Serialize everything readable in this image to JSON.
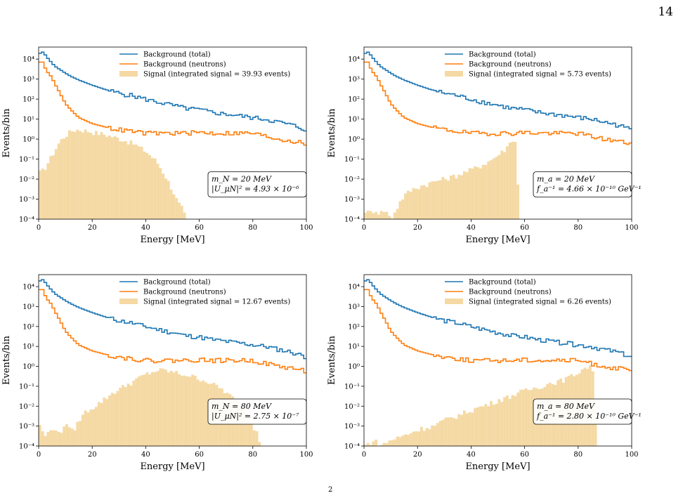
{
  "page_number": "14",
  "caption_fragment": "2",
  "colors": {
    "background_total": "#1f77b4",
    "background_neutrons": "#ff7f0e",
    "signal": "#f5d9a4"
  },
  "chart_data": [
    {
      "type": "step-histogram",
      "xlabel": "Energy [MeV]",
      "ylabel": "Events/bin",
      "xlim": [
        0,
        100
      ],
      "ylim": [
        0.0001,
        40000
      ],
      "yscale": "log",
      "x_ticks": [
        "0",
        "20",
        "40",
        "60",
        "80",
        "100"
      ],
      "y_ticks": [
        "10⁻⁴",
        "10⁻³",
        "10⁻²",
        "10⁻¹",
        "10⁰",
        "10¹",
        "10²",
        "10³",
        "10⁴"
      ],
      "legend": [
        "Background (total)",
        "Background (neutrons)",
        "Signal (integrated signal = 39.93 events)"
      ],
      "legend_position": "top-center",
      "annotation": [
        "m_N = 20 MeV",
        "|U_μN|² = 4.93 × 10⁻⁶"
      ],
      "annotation_position": "center-right",
      "series": [
        {
          "name": "Background (total)",
          "x": [
            0,
            1,
            2,
            3,
            4,
            5,
            6,
            8,
            10,
            12,
            15,
            20,
            25,
            30,
            35,
            40,
            45,
            50,
            55,
            60,
            65,
            70,
            75,
            80,
            85,
            90,
            95,
            100
          ],
          "values": [
            15000,
            25000,
            20000,
            13000,
            9000,
            6500,
            4500,
            3000,
            2000,
            1400,
            900,
            500,
            300,
            200,
            150,
            100,
            70,
            50,
            35,
            30,
            22,
            18,
            15,
            12,
            10,
            7,
            5,
            3
          ]
        },
        {
          "name": "Background (neutrons)",
          "x": [
            0,
            1,
            2,
            3,
            4,
            5,
            6,
            8,
            10,
            12,
            15,
            20,
            25,
            30,
            35,
            40,
            45,
            50,
            55,
            60,
            65,
            70,
            75,
            80,
            85,
            90,
            95,
            100
          ],
          "values": [
            5000,
            10000,
            5000,
            2500,
            1800,
            1200,
            600,
            200,
            60,
            30,
            12,
            6,
            4,
            3,
            2.5,
            2,
            2,
            2,
            2,
            2.2,
            2,
            2,
            2,
            2,
            1.4,
            1,
            0.8,
            0.6
          ]
        },
        {
          "name": "Signal",
          "x": [
            0,
            2,
            5,
            8,
            10,
            12,
            14,
            16,
            18,
            20,
            24,
            28,
            32,
            36,
            40,
            44,
            46,
            48,
            50,
            52,
            54,
            55
          ],
          "values": [
            0.02,
            0.03,
            0.15,
            0.8,
            1.5,
            2.5,
            3,
            2.9,
            2.6,
            2.3,
            1.8,
            1.3,
            0.9,
            0.55,
            0.25,
            0.08,
            0.03,
            0.01,
            0.003,
            0.0007,
            0.0003,
            0.0001
          ]
        }
      ]
    },
    {
      "type": "step-histogram",
      "xlabel": "Energy [MeV]",
      "ylabel": "Events/bin",
      "xlim": [
        0,
        100
      ],
      "ylim": [
        0.0001,
        40000
      ],
      "yscale": "log",
      "x_ticks": [
        "0",
        "20",
        "40",
        "60",
        "80",
        "100"
      ],
      "y_ticks": [
        "10⁻⁴",
        "10⁻³",
        "10⁻²",
        "10⁻¹",
        "10⁰",
        "10¹",
        "10²",
        "10³",
        "10⁴"
      ],
      "legend": [
        "Background (total)",
        "Background (neutrons)",
        "Signal (integrated signal = 5.73 events)"
      ],
      "legend_position": "top-center",
      "annotation": [
        "m_a = 20 MeV",
        "f_a⁻¹ = 4.66 × 10⁻¹⁰ GeV⁻¹"
      ],
      "annotation_position": "center-right",
      "series": [
        {
          "name": "Background (total)",
          "x": [
            0,
            1,
            2,
            3,
            4,
            5,
            6,
            8,
            10,
            12,
            15,
            20,
            25,
            30,
            35,
            40,
            45,
            50,
            55,
            60,
            65,
            70,
            75,
            80,
            85,
            90,
            95,
            100
          ],
          "values": [
            15000,
            25000,
            20000,
            13000,
            9000,
            6500,
            4500,
            3000,
            2000,
            1400,
            900,
            500,
            300,
            200,
            150,
            100,
            70,
            50,
            35,
            30,
            22,
            18,
            15,
            12,
            10,
            7,
            5,
            3
          ]
        },
        {
          "name": "Background (neutrons)",
          "x": [
            0,
            1,
            2,
            3,
            4,
            5,
            6,
            8,
            10,
            12,
            15,
            20,
            25,
            30,
            35,
            40,
            45,
            50,
            55,
            60,
            65,
            70,
            75,
            80,
            85,
            90,
            95,
            100
          ],
          "values": [
            5000,
            10000,
            5000,
            2500,
            1800,
            1200,
            600,
            200,
            60,
            30,
            12,
            6,
            4,
            3,
            2.5,
            2,
            2,
            2,
            2,
            2.2,
            2,
            2,
            2,
            2,
            1.4,
            1,
            0.8,
            0.6
          ]
        },
        {
          "name": "Signal",
          "x": [
            0,
            2,
            4,
            6,
            8,
            10,
            12,
            14,
            16,
            18,
            20,
            24,
            28,
            32,
            36,
            40,
            44,
            48,
            52,
            54,
            55,
            56,
            57,
            58
          ],
          "values": [
            0.0003,
            0.0002,
            0.0003,
            0.0002,
            0.0003,
            0.0001,
            0.0003,
            0.001,
            0.002,
            0.003,
            0.004,
            0.006,
            0.009,
            0.012,
            0.018,
            0.03,
            0.05,
            0.1,
            0.25,
            0.5,
            0.8,
            1.3,
            0.4,
            0.0001
          ]
        }
      ]
    },
    {
      "type": "step-histogram",
      "xlabel": "Energy [MeV]",
      "ylabel": "Events/bin",
      "xlim": [
        0,
        100
      ],
      "ylim": [
        0.0001,
        40000
      ],
      "yscale": "log",
      "x_ticks": [
        "0",
        "20",
        "40",
        "60",
        "80",
        "100"
      ],
      "y_ticks": [
        "10⁻⁴",
        "10⁻³",
        "10⁻²",
        "10⁻¹",
        "10⁰",
        "10¹",
        "10²",
        "10³",
        "10⁴"
      ],
      "legend": [
        "Background (total)",
        "Background (neutrons)",
        "Signal (integrated signal = 12.67 events)"
      ],
      "legend_position": "top-center",
      "annotation": [
        "m_N = 80 MeV",
        "|U_μN|² = 2.75 × 10⁻⁷"
      ],
      "annotation_position": "center-right",
      "series": [
        {
          "name": "Background (total)",
          "x": [
            0,
            1,
            2,
            3,
            4,
            5,
            6,
            8,
            10,
            12,
            15,
            20,
            25,
            30,
            35,
            40,
            45,
            50,
            55,
            60,
            65,
            70,
            75,
            80,
            85,
            90,
            95,
            100
          ],
          "values": [
            15000,
            25000,
            20000,
            13000,
            9000,
            6500,
            4500,
            3000,
            2000,
            1400,
            900,
            500,
            300,
            200,
            150,
            100,
            70,
            50,
            35,
            30,
            22,
            18,
            15,
            12,
            10,
            7,
            5,
            3
          ]
        },
        {
          "name": "Background (neutrons)",
          "x": [
            0,
            1,
            2,
            3,
            4,
            5,
            6,
            8,
            10,
            12,
            15,
            20,
            25,
            30,
            35,
            40,
            45,
            50,
            55,
            60,
            65,
            70,
            75,
            80,
            85,
            90,
            95,
            100
          ],
          "values": [
            5000,
            10000,
            5000,
            2500,
            1800,
            1200,
            600,
            200,
            60,
            30,
            12,
            6,
            4,
            3,
            2.5,
            2,
            2,
            2,
            2,
            2.2,
            2,
            2,
            2,
            2,
            1.4,
            1,
            0.8,
            0.6
          ]
        },
        {
          "name": "Signal",
          "x": [
            0,
            2,
            4,
            6,
            8,
            10,
            12,
            14,
            16,
            18,
            20,
            24,
            28,
            32,
            36,
            40,
            44,
            46,
            48,
            52,
            56,
            60,
            64,
            68,
            72,
            76,
            78,
            80,
            82,
            83
          ],
          "values": [
            0.002,
            0.0003,
            0.0005,
            0.001,
            0.0003,
            0.002,
            0.0005,
            0.001,
            0.003,
            0.006,
            0.008,
            0.02,
            0.05,
            0.1,
            0.2,
            0.4,
            0.6,
            0.65,
            0.6,
            0.45,
            0.35,
            0.25,
            0.15,
            0.08,
            0.03,
            0.01,
            0.005,
            0.001,
            0.0005,
            0.0001
          ]
        }
      ]
    },
    {
      "type": "step-histogram",
      "xlabel": "Energy [MeV]",
      "ylabel": "Events/bin",
      "xlim": [
        0,
        100
      ],
      "ylim": [
        0.0001,
        40000
      ],
      "yscale": "log",
      "x_ticks": [
        "0",
        "20",
        "40",
        "60",
        "80",
        "100"
      ],
      "y_ticks": [
        "10⁻⁴",
        "10⁻³",
        "10⁻²",
        "10⁻¹",
        "10⁰",
        "10¹",
        "10²",
        "10³",
        "10⁴"
      ],
      "legend": [
        "Background (total)",
        "Background (neutrons)",
        "Signal (integrated signal = 6.26 events)"
      ],
      "legend_position": "top-center",
      "annotation": [
        "m_a = 80 MeV",
        "f_a⁻¹ = 2.80 × 10⁻¹⁰ GeV⁻¹"
      ],
      "annotation_position": "center-right",
      "series": [
        {
          "name": "Background (total)",
          "x": [
            0,
            1,
            2,
            3,
            4,
            5,
            6,
            8,
            10,
            12,
            15,
            20,
            25,
            30,
            35,
            40,
            45,
            50,
            55,
            60,
            65,
            70,
            75,
            80,
            85,
            90,
            95,
            100
          ],
          "values": [
            15000,
            25000,
            20000,
            13000,
            9000,
            6500,
            4500,
            3000,
            2000,
            1400,
            900,
            500,
            300,
            200,
            150,
            100,
            70,
            50,
            35,
            30,
            22,
            18,
            15,
            12,
            10,
            7,
            5,
            3
          ]
        },
        {
          "name": "Background (neutrons)",
          "x": [
            0,
            1,
            2,
            3,
            4,
            5,
            6,
            8,
            10,
            12,
            15,
            20,
            25,
            30,
            35,
            40,
            45,
            50,
            55,
            60,
            65,
            70,
            75,
            80,
            85,
            90,
            95,
            100
          ],
          "values": [
            5000,
            10000,
            5000,
            2500,
            1800,
            1200,
            600,
            200,
            60,
            30,
            12,
            6,
            4,
            3,
            2.5,
            2,
            2,
            2,
            2,
            2.2,
            2,
            2,
            2,
            2,
            1.4,
            1,
            0.8,
            0.6
          ]
        },
        {
          "name": "Signal",
          "x": [
            0,
            4,
            6,
            10,
            14,
            18,
            22,
            26,
            30,
            34,
            38,
            42,
            46,
            50,
            54,
            58,
            62,
            66,
            70,
            74,
            78,
            80,
            82,
            84,
            86,
            87
          ],
          "values": [
            0.0001,
            0.0002,
            0.0001,
            0.0002,
            0.0003,
            0.0005,
            0.0008,
            0.001,
            0.002,
            0.003,
            0.005,
            0.008,
            0.012,
            0.02,
            0.03,
            0.05,
            0.07,
            0.1,
            0.15,
            0.2,
            0.35,
            0.5,
            0.8,
            1.0,
            0.6,
            0.0001
          ]
        }
      ]
    }
  ]
}
